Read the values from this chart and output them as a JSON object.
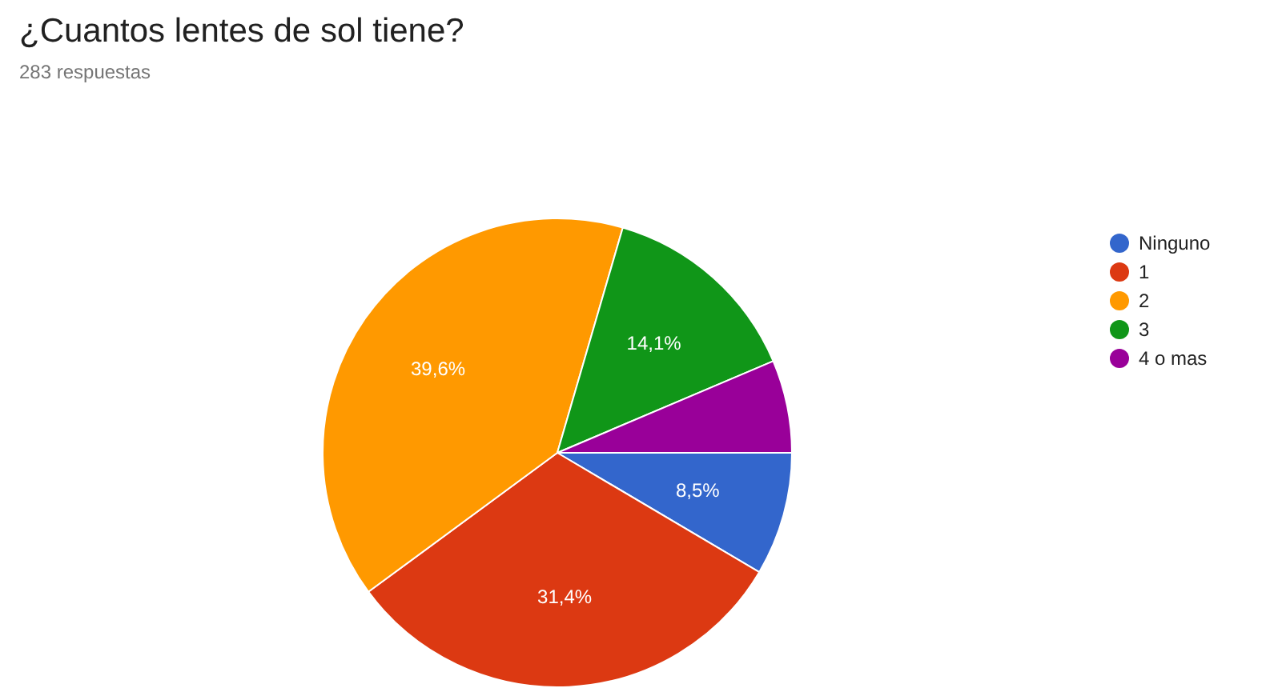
{
  "chart_data": {
    "type": "pie",
    "title": "¿Cuantos lentes de sol tiene?",
    "subtitle": "283 respuestas",
    "categories": [
      "Ninguno",
      "1",
      "2",
      "3",
      "4 o mas"
    ],
    "values": [
      8.5,
      31.4,
      39.6,
      14.1,
      6.4
    ],
    "value_labels": [
      "8,5%",
      "31,4%",
      "39,6%",
      "14,1%",
      null
    ],
    "colors": [
      "#3366cc",
      "#dc3912",
      "#ff9900",
      "#109618",
      "#990099"
    ],
    "legend": "right"
  }
}
